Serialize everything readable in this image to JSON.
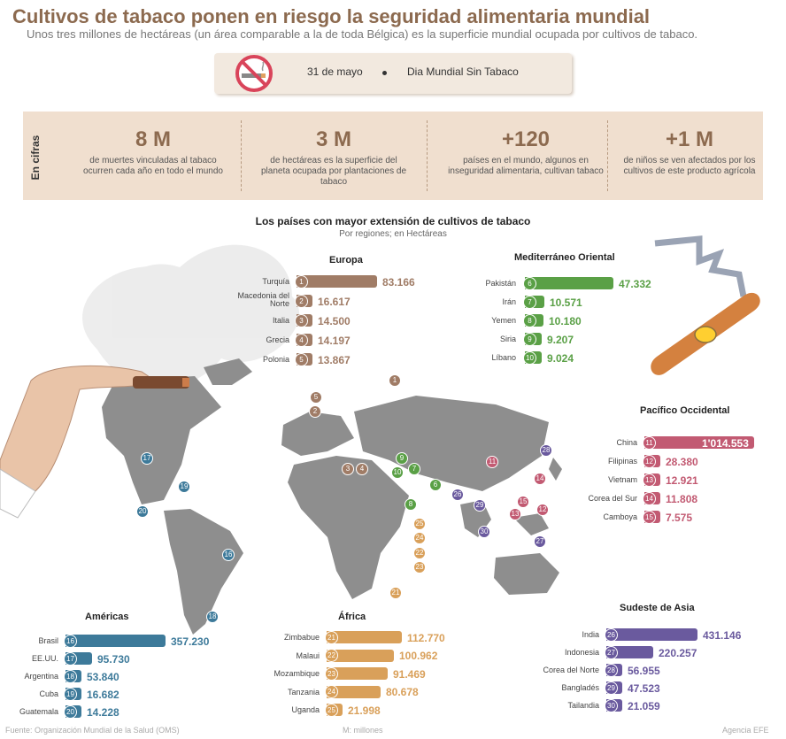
{
  "header": {
    "title": "Cultivos de tabaco ponen en riesgo la seguridad alimentaria mundial",
    "subtitle": "Unos tres millones de hectáreas (un área comparable a la de toda Bélgica) es la superficie mundial ocupada por cultivos de tabaco."
  },
  "datebar": {
    "date": "31 de mayo",
    "event": "Dia Mundial Sin Tabaco"
  },
  "cifras": {
    "label": "En cifras",
    "items": [
      {
        "big": "8 M",
        "text": "de muertes vinculadas al tabaco ocurren cada año en todo el mundo"
      },
      {
        "big": "3 M",
        "text": "de hectáreas es la superficie del planeta ocupada por plantaciones de tabaco"
      },
      {
        "big": "+120",
        "text": "países en el mundo, algunos en inseguridad alimentaria, cultivan tabaco"
      },
      {
        "big": "+1 M",
        "text": "de niños se ven afectados por los cultivos de este producto agrícola"
      }
    ]
  },
  "chart_data": {
    "type": "bar",
    "title": "Los países con mayor extensión de cultivos de tabaco",
    "subtitle": "Por regiones; en Hectáreas",
    "regions": [
      {
        "name": "Europa",
        "color": "#a07c66",
        "items": [
          {
            "rank": "1",
            "country": "Turquía",
            "value": 83166,
            "label": "83.166"
          },
          {
            "rank": "2",
            "country": "Macedonia del Norte",
            "value": 16617,
            "label": "16.617"
          },
          {
            "rank": "3",
            "country": "Italia",
            "value": 14500,
            "label": "14.500"
          },
          {
            "rank": "4",
            "country": "Grecia",
            "value": 14197,
            "label": "14.197"
          },
          {
            "rank": "5",
            "country": "Polonia",
            "value": 13867,
            "label": "13.867"
          }
        ]
      },
      {
        "name": "Mediterráneo Oriental",
        "color": "#5aa046",
        "items": [
          {
            "rank": "6",
            "country": "Pakistán",
            "value": 47332,
            "label": "47.332"
          },
          {
            "rank": "7",
            "country": "Irán",
            "value": 10571,
            "label": "10.571"
          },
          {
            "rank": "8",
            "country": "Yemen",
            "value": 10180,
            "label": "10.180"
          },
          {
            "rank": "9",
            "country": "Siria",
            "value": 9207,
            "label": "9.207"
          },
          {
            "rank": "10",
            "country": "Líbano",
            "value": 9024,
            "label": "9.024"
          }
        ]
      },
      {
        "name": "Pacífico Occidental",
        "color": "#c25a72",
        "items": [
          {
            "rank": "11",
            "country": "China",
            "value": 1014553,
            "label": "1'014.553"
          },
          {
            "rank": "12",
            "country": "Filipinas",
            "value": 28380,
            "label": "28.380"
          },
          {
            "rank": "13",
            "country": "Vietnam",
            "value": 12921,
            "label": "12.921"
          },
          {
            "rank": "14",
            "country": "Corea del Sur",
            "value": 11808,
            "label": "11.808"
          },
          {
            "rank": "15",
            "country": "Camboya",
            "value": 7575,
            "label": "7.575"
          }
        ]
      },
      {
        "name": "Américas",
        "color": "#3d7a9a",
        "items": [
          {
            "rank": "16",
            "country": "Brasil",
            "value": 357230,
            "label": "357.230"
          },
          {
            "rank": "17",
            "country": "EE.UU.",
            "value": 95730,
            "label": "95.730"
          },
          {
            "rank": "18",
            "country": "Argentina",
            "value": 53840,
            "label": "53.840"
          },
          {
            "rank": "19",
            "country": "Cuba",
            "value": 16682,
            "label": "16.682"
          },
          {
            "rank": "20",
            "country": "Guatemala",
            "value": 14228,
            "label": "14.228"
          }
        ]
      },
      {
        "name": "África",
        "color": "#d9a05a",
        "items": [
          {
            "rank": "21",
            "country": "Zimbabue",
            "value": 112770,
            "label": "112.770"
          },
          {
            "rank": "22",
            "country": "Malaui",
            "value": 100962,
            "label": "100.962"
          },
          {
            "rank": "23",
            "country": "Mozambique",
            "value": 91469,
            "label": "91.469"
          },
          {
            "rank": "24",
            "country": "Tanzania",
            "value": 80678,
            "label": "80.678"
          },
          {
            "rank": "25",
            "country": "Uganda",
            "value": 21998,
            "label": "21.998"
          }
        ]
      },
      {
        "name": "Sudeste de Asia",
        "color": "#6a5a9e",
        "items": [
          {
            "rank": "26",
            "country": "India",
            "value": 431146,
            "label": "431.146"
          },
          {
            "rank": "27",
            "country": "Indonesia",
            "value": 220257,
            "label": "220.257"
          },
          {
            "rank": "28",
            "country": "Corea del Norte",
            "value": 56955,
            "label": "56.955"
          },
          {
            "rank": "29",
            "country": "Bangladés",
            "value": 47523,
            "label": "47.523"
          },
          {
            "rank": "30",
            "country": "Tailandia",
            "value": 21059,
            "label": "21.059"
          }
        ]
      }
    ]
  },
  "footer": {
    "source": "Fuente: Organización Mundial de la Salud (OMS)",
    "units": "M: millones",
    "credit": "Agencia EFE"
  }
}
